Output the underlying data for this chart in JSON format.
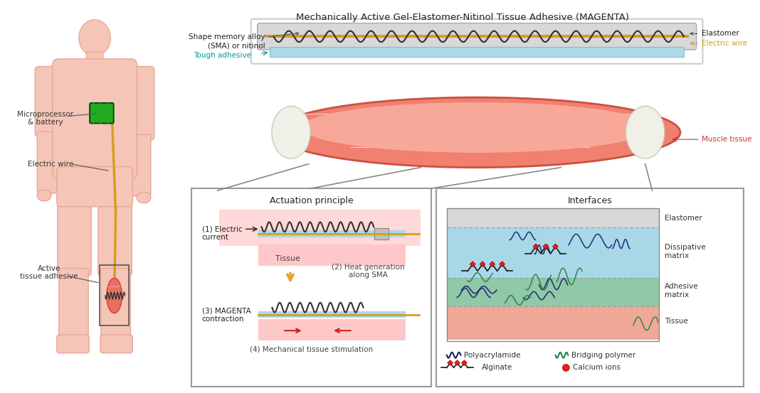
{
  "title": "Mechanically Active Gel-Elastomer-Nitinol Tissue Adhesive (MAGENTA)",
  "bg_color": "#ffffff",
  "body_color": "#f5c5b8",
  "body_outline": "#e8a898",
  "muscle_color_outer": "#e8756a",
  "muscle_color_inner": "#f09080",
  "elastomer_color": "#d0d0d0",
  "adhesive_color_top": "#add8e6",
  "wire_color": "#d4a020",
  "sma_color": "#404040",
  "tissue_pink": "#f4b8b8",
  "tissue_blue": "#b8ddf0",
  "tissue_green": "#90c8a0",
  "tissue_red_bottom": "#f0a0a0",
  "arrow_orange": "#e8a030",
  "arrow_red": "#cc2020",
  "box_border": "#888888",
  "label_color": "#333333",
  "actuation_title": "Actuation principle",
  "interfaces_title": "Interfaces",
  "labels": {
    "shape_memory": "Shape memory alloy\n(SMA) or nitinol",
    "tough_adhesive": "Tough adhesive",
    "elastomer": "Elastomer",
    "electric_wire": "Electric wire",
    "muscle_tissue": "Muscle tissue",
    "microprocessor": "Microprocessor\n& battery",
    "electric_wire2": "Electric wire",
    "active_tissue": "Active\ntissue adhesive",
    "step1": "(1) Electric\ncurrent",
    "step2": "(2) Heat generation\nalong SMA",
    "step3": "(3) MAGENTA\ncontraction",
    "step4": "(4) Mechanical tissue stimulation",
    "tissue": "Tissue",
    "elastomer_layer": "Elastomer",
    "dissipative_matrix": "Dissipative\nmatrix",
    "adhesive_matrix": "Adhesive\nmatrix",
    "tissue_layer": "Tissue",
    "polyacrylamide": "Polyacrylamide",
    "bridging_polymer": "Bridging polymer",
    "alginate": "Alginate",
    "calcium_ions": "Calcium ions"
  }
}
